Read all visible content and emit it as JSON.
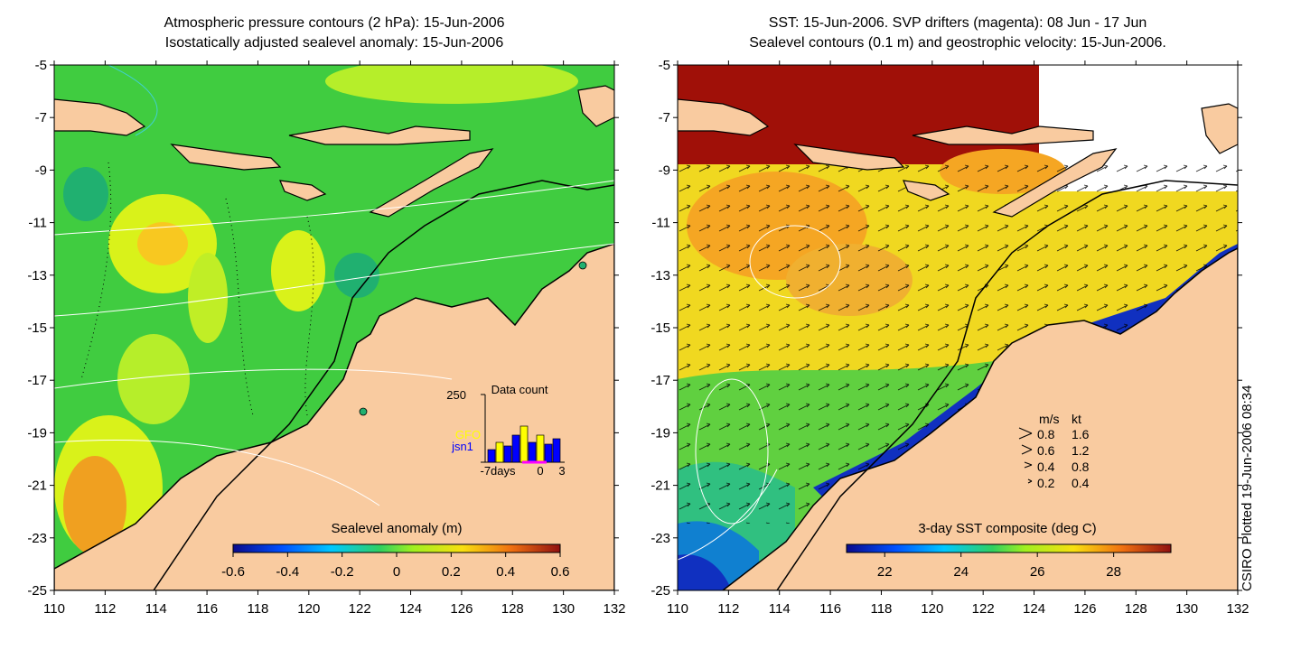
{
  "left_panel": {
    "title_line1": "Atmospheric pressure contours (2 hPa): 15-Jun-2006",
    "title_line2": "Isostatically adjusted sealevel anomaly: 15-Jun-2006",
    "colorbar": {
      "label": "Sealevel anomaly (m)",
      "ticks": [
        "-0.6",
        "-0.4",
        "-0.2",
        "0",
        "0.2",
        "0.4",
        "0.6"
      ],
      "range": [
        -0.6,
        0.6
      ]
    },
    "inset": {
      "title": "Data count",
      "y_max_label": "250",
      "series": [
        {
          "name": "GFO",
          "color": "#ffff00"
        },
        {
          "name": "jsn1",
          "color": "#0000ff"
        }
      ],
      "x_labels": [
        "-7days",
        "0",
        "3"
      ]
    }
  },
  "right_panel": {
    "title_line1": "SST: 15-Jun-2006. SVP drifters (magenta): 08 Jun - 17 Jun",
    "title_line2": "Sealevel contours (0.1 m) and geostrophic velocity: 15-Jun-2006.",
    "colorbar": {
      "label": "3-day SST composite (deg C)",
      "ticks": [
        "22",
        "24",
        "26",
        "28"
      ],
      "range": [
        21,
        29.5
      ]
    },
    "velocity_legend": {
      "header_ms": "m/s",
      "header_kt": "kt",
      "rows": [
        {
          "ms": "0.8",
          "kt": "1.6"
        },
        {
          "ms": "0.6",
          "kt": "1.2"
        },
        {
          "ms": "0.4",
          "kt": "0.8"
        },
        {
          "ms": "0.2",
          "kt": "0.4"
        }
      ]
    }
  },
  "axes": {
    "lon_ticks": [
      "110",
      "112",
      "114",
      "116",
      "118",
      "120",
      "122",
      "124",
      "126",
      "128",
      "130",
      "132"
    ],
    "lat_ticks": [
      "-5",
      "-7",
      "-9",
      "-11",
      "-13",
      "-15",
      "-17",
      "-19",
      "-21",
      "-23",
      "-25"
    ],
    "lon_range": [
      110,
      132
    ],
    "lat_range": [
      -25,
      -5
    ]
  },
  "credit": "CSIRO Plotted 19-Jun-2006 08:34",
  "colors": {
    "land": "#f9cba0",
    "sla_green": "#3fcf3f",
    "sla_yellow": "#d9f21a",
    "sst_red": "#a01008",
    "sst_orange": "#f5a623",
    "sst_yellow": "#e8e01a",
    "sst_blue": "#1030c0"
  }
}
